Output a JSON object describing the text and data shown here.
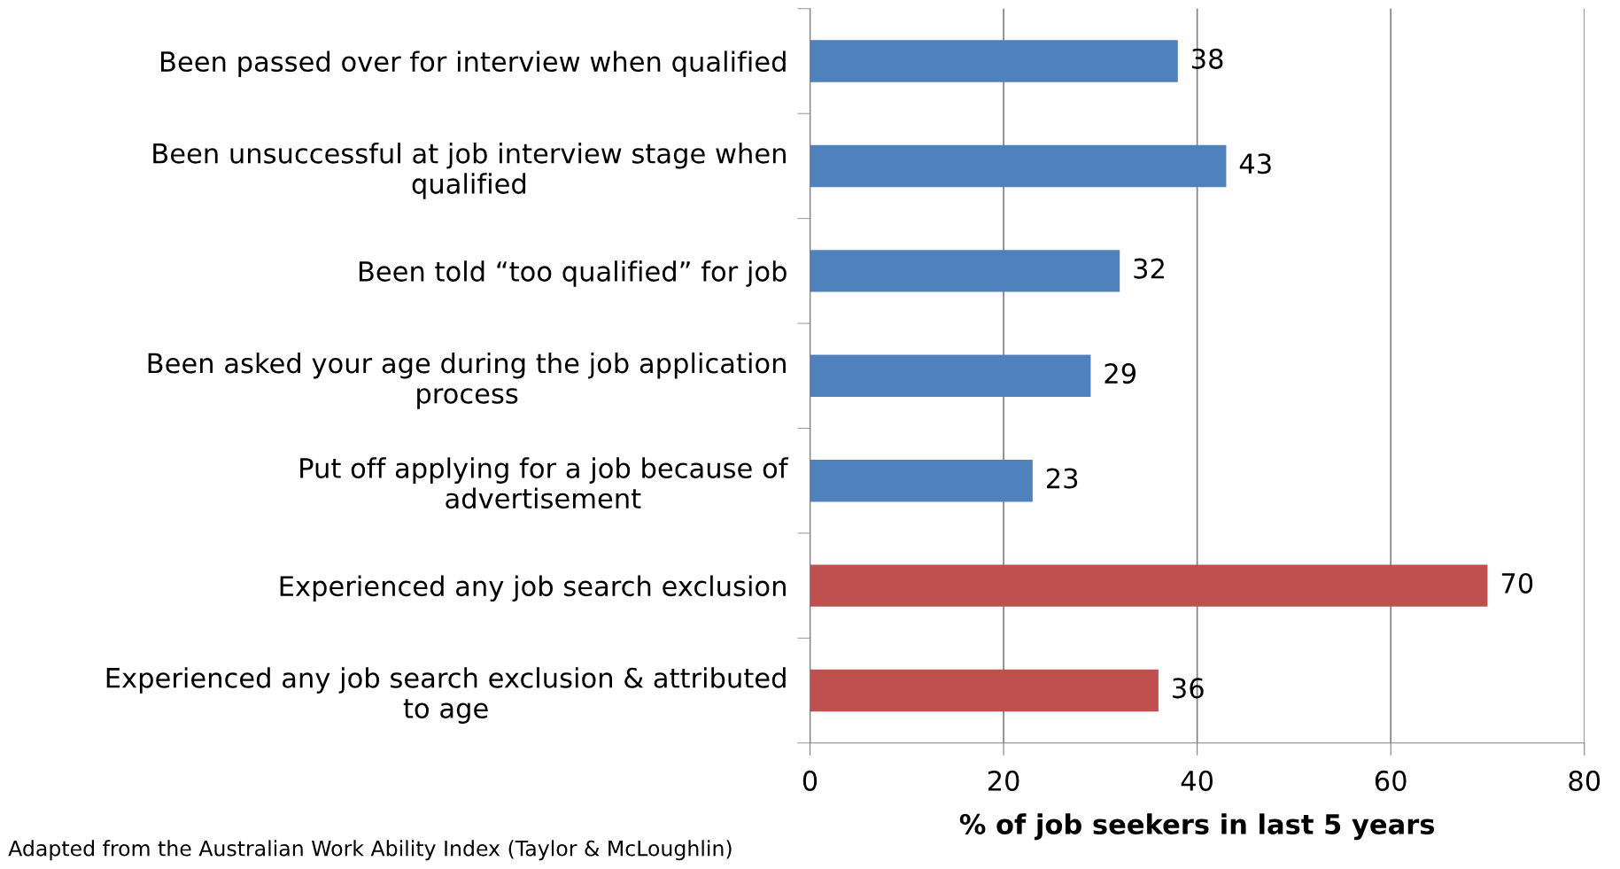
{
  "chart_data": {
    "type": "bar",
    "orientation": "horizontal",
    "categories": [
      "Been passed over for interview when qualified",
      "Been unsuccessful at job interview stage when\nqualified",
      "Been told “too qualified” for job",
      "Been asked your age during the job application\nprocess",
      "Put off applying for a job because of\nadvertisement",
      "Experienced any job search exclusion",
      "Experienced any job search exclusion & attributed\nto age"
    ],
    "values": [
      38,
      43,
      32,
      29,
      23,
      70,
      36
    ],
    "colors": [
      "#4f81bd",
      "#4f81bd",
      "#4f81bd",
      "#4f81bd",
      "#4f81bd",
      "#c0504d",
      "#c0504d"
    ],
    "xlim": [
      0,
      80
    ],
    "xticks": [
      0,
      20,
      40,
      60,
      80
    ],
    "grid": "x",
    "data_labels": true,
    "xlabel": "% of job seekers in last 5 years",
    "annotations": [
      "Adapted from the Australian Work Ability Index (Taylor & McLoughlin)"
    ]
  }
}
